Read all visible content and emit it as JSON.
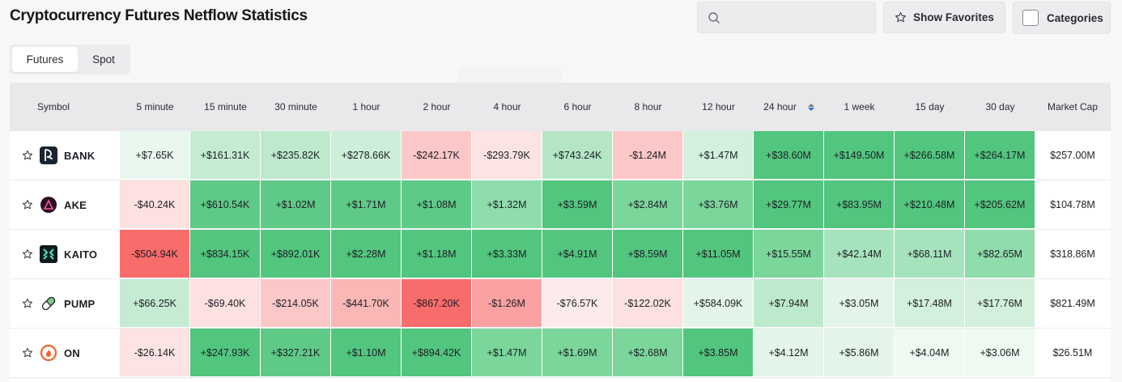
{
  "title": "Cryptocurrency Futures Netflow Statistics",
  "search": {
    "placeholder": "",
    "value": ""
  },
  "favorites_label": "Show Favorites",
  "categories_label": "Categories",
  "tabs": [
    {
      "label": "Futures",
      "active": true
    },
    {
      "label": "Spot",
      "active": false
    }
  ],
  "columns": {
    "symbol": "Symbol",
    "periods": [
      "5 minute",
      "15 minute",
      "30 minute",
      "1 hour",
      "2 hour",
      "4 hour",
      "6 hour",
      "8 hour",
      "12 hour",
      "24 hour",
      "1 week",
      "15 day",
      "30 day"
    ],
    "market_cap": "Market Cap",
    "sorted_column": "24 hour"
  },
  "rows": [
    {
      "symbol": "BANK",
      "logo_icon": "bank-logo-icon",
      "logo_color": "#1b2530",
      "values": [
        "+$7.65K",
        "+$161.31K",
        "+$235.82K",
        "+$278.66K",
        "-$242.17K",
        "-$293.79K",
        "+$743.24K",
        "-$1.24M",
        "+$1.47M",
        "+$38.60M",
        "+$149.50M",
        "+$266.58M",
        "+$264.17M"
      ],
      "colors": [
        "#e9f7ee",
        "#c5ecd3",
        "#bdeacc",
        "#cdefd9",
        "#fbc7c7",
        "#fde3e3",
        "#b4e6c6",
        "#fbc7c7",
        "#d2f0dc",
        "#52c57f",
        "#52c57f",
        "#52c57f",
        "#52c57f"
      ],
      "market_cap": "$257.00M"
    },
    {
      "symbol": "AKE",
      "logo_icon": "ake-logo-icon",
      "logo_color": "#2a0f24",
      "values": [
        "-$40.24K",
        "+$610.54K",
        "+$1.02M",
        "+$1.71M",
        "+$1.08M",
        "+$1.32M",
        "+$3.59M",
        "+$2.84M",
        "+$3.76M",
        "+$29.77M",
        "+$83.95M",
        "+$210.48M",
        "+$205.62M"
      ],
      "colors": [
        "#fde0e0",
        "#5fca88",
        "#5fca88",
        "#5fca88",
        "#5fca88",
        "#8fdcac",
        "#52c57f",
        "#7ad69b",
        "#7ad69b",
        "#52c57f",
        "#52c57f",
        "#52c57f",
        "#52c57f"
      ],
      "market_cap": "$104.78M"
    },
    {
      "symbol": "KAITO",
      "logo_icon": "kaito-logo-icon",
      "logo_color": "#0f1a1a",
      "values": [
        "-$504.94K",
        "+$834.15K",
        "+$892.01K",
        "+$2.28M",
        "+$1.18M",
        "+$3.33M",
        "+$4.91M",
        "+$8.59M",
        "+$11.05M",
        "+$15.55M",
        "+$42.14M",
        "+$68.11M",
        "+$82.65M"
      ],
      "colors": [
        "#f96c6c",
        "#52c57f",
        "#52c57f",
        "#52c57f",
        "#52c57f",
        "#52c57f",
        "#52c57f",
        "#52c57f",
        "#52c57f",
        "#7ad69b",
        "#a6e3bd",
        "#a6e3bd",
        "#8fdcac"
      ],
      "market_cap": "$318.86M"
    },
    {
      "symbol": "PUMP",
      "logo_icon": "pump-logo-icon",
      "logo_color": "#7fc98a",
      "values": [
        "+$66.25K",
        "-$69.40K",
        "-$214.05K",
        "-$441.70K",
        "-$867.20K",
        "-$1.26M",
        "-$76.57K",
        "-$122.02K",
        "+$584.09K",
        "+$7.94M",
        "+$3.05M",
        "+$17.48M",
        "+$17.76M"
      ],
      "colors": [
        "#c5ecd3",
        "#fde0e0",
        "#fbc7c7",
        "#fbb6b6",
        "#f96c6c",
        "#fba1a1",
        "#fdeaea",
        "#fde0e0",
        "#e3f5e9",
        "#bdeacc",
        "#e3f5e9",
        "#d2f0dc",
        "#d2f0dc"
      ],
      "market_cap": "$821.49M"
    },
    {
      "symbol": "ON",
      "logo_icon": "on-logo-icon",
      "logo_color": "#f4622a",
      "values": [
        "-$26.14K",
        "+$247.93K",
        "+$327.21K",
        "+$1.10M",
        "+$894.42K",
        "+$1.47M",
        "+$1.69M",
        "+$2.68M",
        "+$3.85M",
        "+$4.12M",
        "+$5.86M",
        "+$4.04M",
        "+$3.06M"
      ],
      "colors": [
        "#fde3e3",
        "#52c57f",
        "#5fca88",
        "#52c57f",
        "#52c57f",
        "#7ad69b",
        "#7ad69b",
        "#7ad69b",
        "#52c57f",
        "#e3f5e9",
        "#e3f5e9",
        "#eef9f2",
        "#eef9f2"
      ],
      "market_cap": "$26.51M"
    }
  ]
}
